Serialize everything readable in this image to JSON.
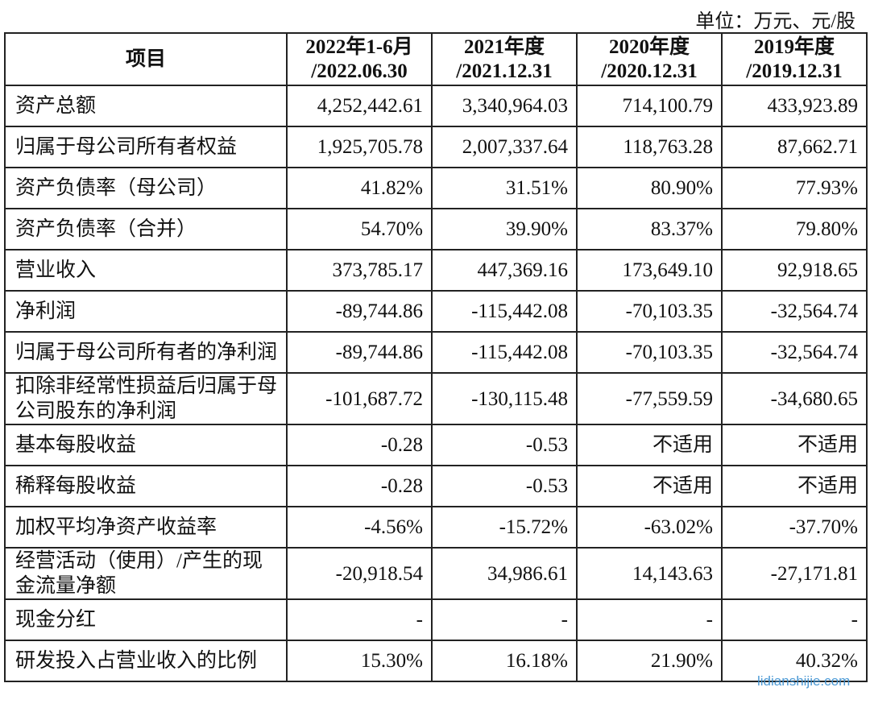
{
  "unit": "单位：万元、元/股",
  "watermark": "lidianshijie.com",
  "table": {
    "header": [
      [
        "项目"
      ],
      [
        "2022年1-6月",
        "/2022.06.30"
      ],
      [
        "2021年度",
        "/2021.12.31"
      ],
      [
        "2020年度",
        "/2020.12.31"
      ],
      [
        "2019年度",
        "/2019.12.31"
      ]
    ],
    "rows": [
      [
        "资产总额",
        "4,252,442.61",
        "3,340,964.03",
        "714,100.79",
        "433,923.89"
      ],
      [
        "归属于母公司所有者权益",
        "1,925,705.78",
        "2,007,337.64",
        "118,763.28",
        "87,662.71"
      ],
      [
        "资产负债率（母公司）",
        "41.82%",
        "31.51%",
        "80.90%",
        "77.93%"
      ],
      [
        "资产负债率（合并）",
        "54.70%",
        "39.90%",
        "83.37%",
        "79.80%"
      ],
      [
        "营业收入",
        "373,785.17",
        "447,369.16",
        "173,649.10",
        "92,918.65"
      ],
      [
        "净利润",
        "-89,744.86",
        "-115,442.08",
        "-70,103.35",
        "-32,564.74"
      ],
      [
        "归属于母公司所有者的净利润",
        "-89,744.86",
        "-115,442.08",
        "-70,103.35",
        "-32,564.74"
      ],
      [
        "扣除非经常性损益后归属于母公司股东的净利润",
        "-101,687.72",
        "-130,115.48",
        "-77,559.59",
        "-34,680.65"
      ],
      [
        "基本每股收益",
        "-0.28",
        "-0.53",
        "不适用",
        "不适用"
      ],
      [
        "稀释每股收益",
        "-0.28",
        "-0.53",
        "不适用",
        "不适用"
      ],
      [
        "加权平均净资产收益率",
        "-4.56%",
        "-15.72%",
        "-63.02%",
        "-37.70%"
      ],
      [
        "经营活动（使用）/产生的现金流量净额",
        "-20,918.54",
        "34,986.61",
        "14,143.63",
        "-27,171.81"
      ],
      [
        "现金分红",
        "-",
        "-",
        "-",
        "-"
      ],
      [
        "研发投入占营业收入的比例",
        "15.30%",
        "16.18%",
        "21.90%",
        "40.32%"
      ]
    ]
  }
}
